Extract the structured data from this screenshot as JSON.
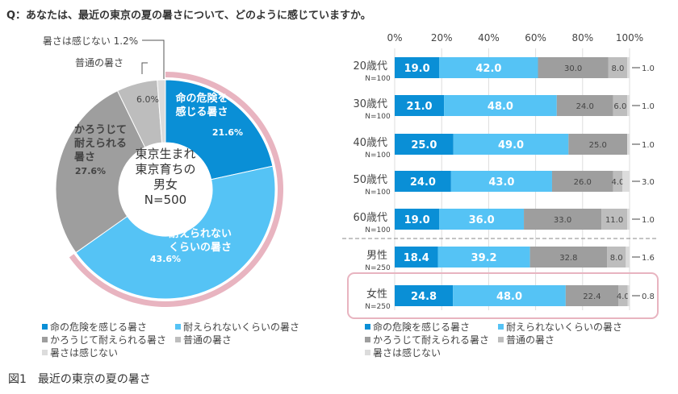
{
  "question": "Q：あなたは、最近の東京の夏の暑さについて、どのように感じていますか。",
  "figure_caption": "図1　最近の東京の夏の暑さ",
  "categories": [
    {
      "label": "命の危険を感じる暑さ",
      "color": "#0a8fd6"
    },
    {
      "label": "耐えられないくらいの暑さ",
      "color": "#55c3f5"
    },
    {
      "label": "かろうじて耐えられる暑さ",
      "color": "#9e9e9e"
    },
    {
      "label": "普通の暑さ",
      "color": "#bdbdbd"
    },
    {
      "label": "暑さは感じない",
      "color": "#dcdcdc"
    }
  ],
  "highlight_color": "#e8b4c0",
  "chart_data": [
    {
      "type": "pie",
      "variant": "donut",
      "title": "",
      "center_label": [
        "東京生まれ",
        "東京育ちの",
        "男女",
        "N=500"
      ],
      "slices": [
        {
          "label": "命の危険を感じる暑さ",
          "slice_label": [
            "命の危険を",
            "感じる暑さ"
          ],
          "value": 21.6,
          "value_text": "21.6%"
        },
        {
          "label": "耐えられないくらいの暑さ",
          "slice_label": [
            "耐えられない",
            "くらいの暑さ"
          ],
          "value": 43.6,
          "value_text": "43.6%"
        },
        {
          "label": "かろうじて耐えられる暑さ",
          "slice_label": [
            "かろうじて",
            "耐えられる",
            "暑さ"
          ],
          "value": 27.6,
          "value_text": "27.6%"
        },
        {
          "label": "普通の暑さ",
          "slice_label": [],
          "value": 6.0,
          "value_text": "6.0%",
          "callout": "普通の暑さ"
        },
        {
          "label": "暑さは感じない",
          "slice_label": [],
          "value": 1.2,
          "value_text": "",
          "callout": "暑さは感じない 1.2%"
        }
      ],
      "highlight_arc_note": "pink arc spans 命の危険を感じる暑さ + 耐えられないくらいの暑さ",
      "legend": [
        "命の危険を感じる暑さ",
        "耐えられないくらいの暑さ",
        "かろうじて耐えられる暑さ",
        "普通の暑さ",
        "暑さは感じない"
      ],
      "legend_position": "bottom"
    },
    {
      "type": "bar",
      "orientation": "horizontal",
      "stacked": "percent",
      "title": "",
      "xlim": [
        0,
        100
      ],
      "x_ticks": [
        "0%",
        "20%",
        "40%",
        "60%",
        "80%",
        "100%"
      ],
      "grid": true,
      "series": [
        "命の危険を感じる暑さ",
        "耐えられないくらいの暑さ",
        "かろうじて耐えられる暑さ",
        "普通の暑さ",
        "暑さは感じない"
      ],
      "rows": [
        {
          "label": "20歳代",
          "n": "N=100",
          "values": [
            19.0,
            42.0,
            30.0,
            8.0,
            1.0
          ],
          "highlight": false,
          "divider_after": false
        },
        {
          "label": "30歳代",
          "n": "N=100",
          "values": [
            21.0,
            48.0,
            24.0,
            6.0,
            1.0
          ],
          "highlight": false,
          "divider_after": false
        },
        {
          "label": "40歳代",
          "n": "N=100",
          "values": [
            25.0,
            49.0,
            25.0,
            0.0,
            1.0
          ],
          "highlight": false,
          "divider_after": false
        },
        {
          "label": "50歳代",
          "n": "N=100",
          "values": [
            24.0,
            43.0,
            26.0,
            4.0,
            3.0
          ],
          "highlight": false,
          "divider_after": false
        },
        {
          "label": "60歳代",
          "n": "N=100",
          "values": [
            19.0,
            36.0,
            33.0,
            11.0,
            1.0
          ],
          "highlight": false,
          "divider_after": true
        },
        {
          "label": "男性",
          "n": "N=250",
          "values": [
            18.4,
            39.2,
            32.8,
            8.0,
            1.6
          ],
          "highlight": false,
          "divider_after": false
        },
        {
          "label": "女性",
          "n": "N=250",
          "values": [
            24.8,
            48.0,
            22.4,
            4.0,
            0.8
          ],
          "highlight": true,
          "divider_after": false
        }
      ],
      "legend": [
        "命の危険を感じる暑さ",
        "耐えられないくらいの暑さ",
        "かろうじて耐えられる暑さ",
        "普通の暑さ",
        "暑さは感じない"
      ],
      "legend_position": "bottom"
    }
  ]
}
